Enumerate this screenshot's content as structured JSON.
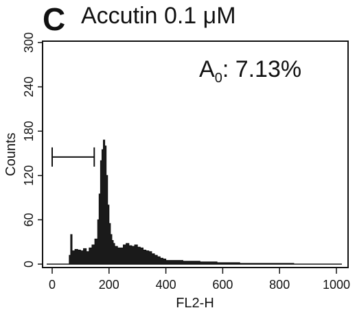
{
  "figure": {
    "panel_letter": "C",
    "title": "Accutin 0.1 μM",
    "annotation": {
      "prefix": "A",
      "subscript": "0",
      "suffix": ": 7.13%"
    }
  },
  "colors": {
    "ink": "#111111",
    "fill": "#1a1a1a",
    "background": "#ffffff"
  },
  "chart_data": {
    "type": "histogram",
    "title": "Accutin 0.1 μM",
    "xlabel": "FL2-H",
    "ylabel": "Counts",
    "xlim": [
      0,
      1000
    ],
    "ylim": [
      0,
      300
    ],
    "xticks": [
      0,
      200,
      400,
      600,
      800,
      1000
    ],
    "yticks": [
      0,
      60,
      120,
      180,
      240,
      300
    ],
    "grid": false,
    "gate": {
      "label": "A0",
      "x_start": 0,
      "x_end": 148,
      "y": 145,
      "percent": 7.13
    },
    "bins_x": [
      0,
      10,
      20,
      30,
      40,
      50,
      60,
      65,
      70,
      80,
      90,
      100,
      110,
      120,
      130,
      140,
      150,
      160,
      165,
      170,
      175,
      180,
      185,
      190,
      195,
      200,
      205,
      210,
      215,
      220,
      230,
      240,
      250,
      260,
      270,
      280,
      290,
      300,
      310,
      320,
      330,
      340,
      350,
      360,
      370,
      380,
      390,
      400,
      420,
      440,
      460,
      480,
      500,
      520,
      540,
      560,
      580,
      600,
      620,
      640,
      660,
      680,
      700,
      720,
      740,
      760,
      780,
      800,
      850,
      900,
      950,
      1000
    ],
    "counts": [
      0,
      0,
      0,
      0,
      0,
      0,
      12,
      40,
      18,
      20,
      19,
      18,
      21,
      17,
      22,
      26,
      34,
      60,
      95,
      140,
      155,
      168,
      160,
      120,
      80,
      55,
      40,
      32,
      28,
      24,
      22,
      22,
      26,
      28,
      25,
      24,
      26,
      23,
      22,
      19,
      18,
      17,
      14,
      12,
      10,
      8,
      7,
      5,
      5,
      5,
      4,
      4,
      4,
      3,
      3,
      3,
      2,
      2,
      2,
      2,
      1,
      1,
      1,
      1,
      1,
      1,
      1,
      1,
      0,
      0,
      0,
      0
    ]
  }
}
